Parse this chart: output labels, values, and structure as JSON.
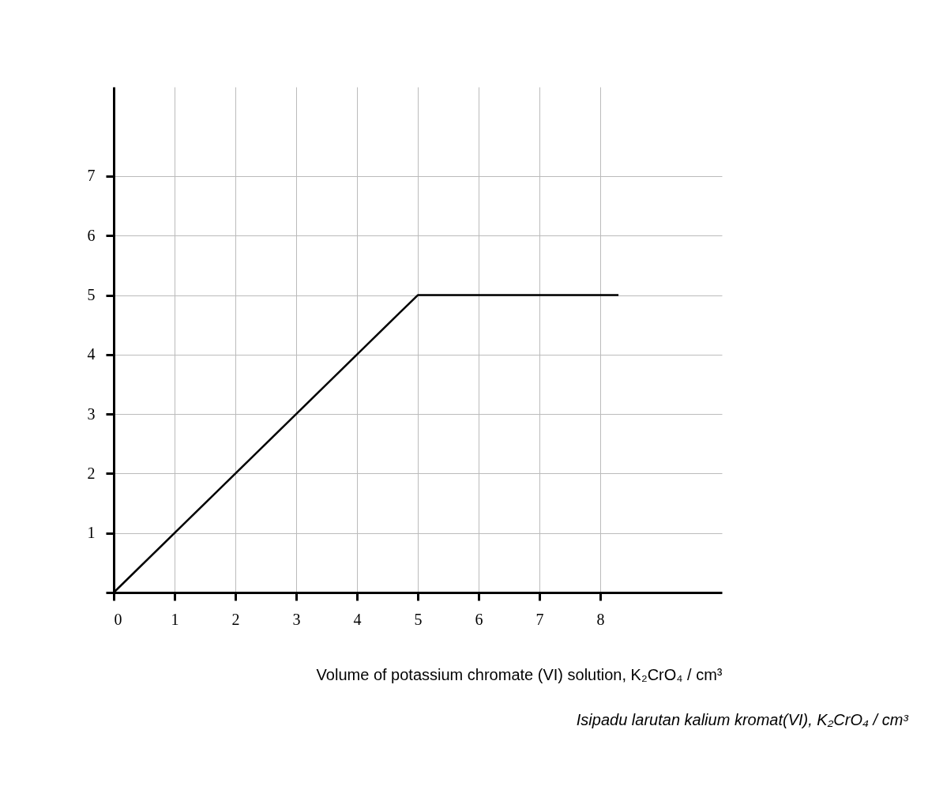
{
  "chart_data": {
    "type": "line",
    "xlabel": "Volume of potassium chromate (VI) solution, K₂CrO₄ / cm³",
    "annotations": [
      "Isipadu larutan kalium kromat(VI), K₂CrO₄ / cm³"
    ],
    "x": [
      0,
      5,
      8.3
    ],
    "series": [
      {
        "color": "#000000",
        "values": [
          0,
          5,
          5
        ]
      }
    ],
    "xlim": [
      0,
      10
    ],
    "ylim": [
      0,
      8.5
    ],
    "xticks": [
      0,
      1,
      2,
      3,
      4,
      5,
      6,
      7,
      8
    ],
    "yticks": [
      {
        "value": 0,
        "label": null
      },
      1,
      2,
      3,
      4,
      5,
      6,
      7
    ],
    "grid": true,
    "marker": "none",
    "line_style": "solid"
  }
}
